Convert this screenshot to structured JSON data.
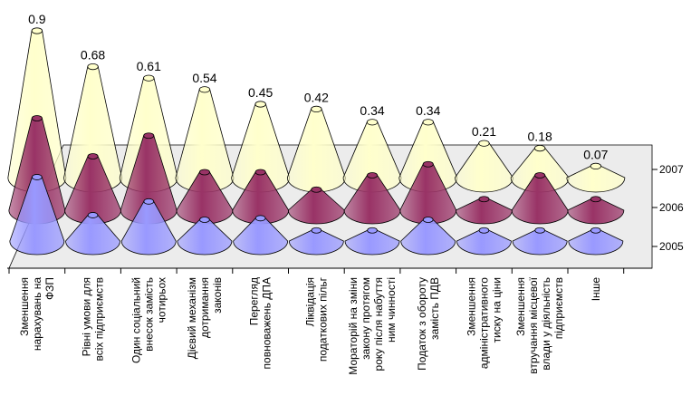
{
  "chart_data": {
    "type": "bar",
    "style": "3d-cone",
    "title": "",
    "xlabel": "",
    "ylabel": "",
    "categories": [
      "Зменшення нарахувань на ФЗП",
      "Рівні умови для всіх підприємств",
      "Один соціальний внесок замість чотирьох",
      "Дієвий механізм дотримання законів",
      "Перегляд повноважень ДПА",
      "Ліквідація податкових пільг",
      "Мораторій на зміни закону протягом року після набуття ним чинності",
      "Податок з обороту замість ПДВ",
      "Зменшення адміністративного тиску на ціни",
      "Зменшення втручання місцевої влади у діяльність підприємств",
      "Інше"
    ],
    "category_lines": [
      [
        "Зменшення",
        "нарахувань на",
        "ФЗП"
      ],
      [
        "Рівні умови для",
        "всіх підприємств"
      ],
      [
        "Один соціальний",
        "внесок замість",
        "чотирьох"
      ],
      [
        "Дієвий механізм",
        "дотримання",
        "законів"
      ],
      [
        "Перегляд",
        "повноважень ДПА"
      ],
      [
        "Ліквідація",
        "податкових пільг"
      ],
      [
        "Мораторій на зміни",
        "закону протягом",
        "року після набуття",
        "ним чинності"
      ],
      [
        "Податок з обороту",
        "замість ПДВ"
      ],
      [
        "Зменшення",
        "адміністративного",
        "тиску на ціни"
      ],
      [
        "Зменшення",
        "втручання місцевої",
        "влади у діяльність",
        "підприємств"
      ],
      [
        "Інше"
      ]
    ],
    "series": [
      {
        "name": "2007",
        "color": "#ffffcc",
        "values": [
          0.9,
          0.68,
          0.61,
          0.54,
          0.45,
          0.42,
          0.34,
          0.34,
          0.21,
          0.18,
          0.07
        ]
      },
      {
        "name": "2006",
        "color": "#993366",
        "values": [
          0.58,
          0.34,
          0.47,
          0.24,
          0.24,
          0.13,
          0.22,
          0.29,
          0.07,
          0.22,
          0.07
        ]
      },
      {
        "name": "2005",
        "color": "#9999ff",
        "values": [
          0.42,
          0.17,
          0.26,
          0.14,
          0.15,
          0.07,
          0.07,
          0.14,
          0.07,
          0.07,
          0.07
        ]
      }
    ],
    "data_labels": [
      "0.9",
      "0.68",
      "0.61",
      "0.54",
      "0.45",
      "0.42",
      "0.34",
      "0.34",
      "0.21",
      "0.18",
      "0.07"
    ],
    "ylim": [
      0,
      1
    ],
    "grid": false,
    "legend": "right"
  }
}
